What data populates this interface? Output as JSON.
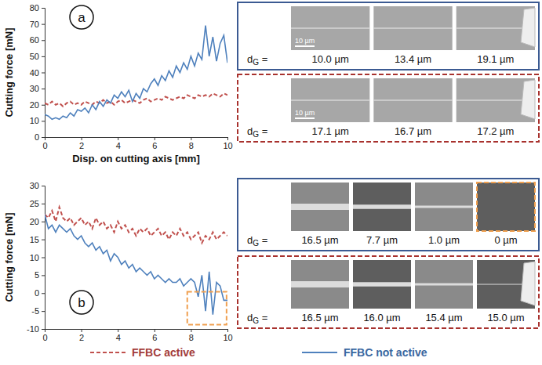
{
  "chart_data": [
    {
      "type": "line",
      "annotations": [
        "a"
      ],
      "x_label": "Disp. on cutting axis [mm]",
      "y_label": "Cutting force [mN]",
      "x": [
        0,
        0.2,
        0.4,
        0.6,
        0.8,
        1,
        1.2,
        1.4,
        1.6,
        1.8,
        2,
        2.2,
        2.4,
        2.6,
        2.8,
        3,
        3.2,
        3.4,
        3.6,
        3.8,
        4,
        4.2,
        4.4,
        4.6,
        4.8,
        5,
        5.2,
        5.4,
        5.6,
        5.8,
        6,
        6.2,
        6.4,
        6.6,
        6.8,
        7,
        7.2,
        7.4,
        7.6,
        7.8,
        8,
        8.2,
        8.4,
        8.6,
        8.8,
        9,
        9.2,
        9.4,
        9.6,
        9.8,
        10
      ],
      "xlim": [
        0,
        10
      ],
      "xticks": [
        0,
        2,
        4,
        6,
        8,
        10
      ],
      "ylim": [
        0,
        80
      ],
      "yticks": [
        0,
        10,
        20,
        30,
        40,
        50,
        60,
        70,
        80
      ],
      "series": [
        {
          "name": "FFBC active",
          "color": "#c0504d",
          "line_style": "dashed",
          "values": [
            21,
            20,
            22,
            20,
            21,
            19,
            21,
            22,
            20,
            21,
            20,
            22,
            21,
            20,
            22,
            21,
            23,
            21,
            22,
            20,
            22,
            23,
            21,
            22,
            23,
            22,
            21,
            23,
            24,
            22,
            23,
            24,
            23,
            25,
            24,
            23,
            24,
            25,
            24,
            26,
            25,
            24,
            26,
            25,
            26,
            25,
            27,
            26,
            25,
            27,
            26
          ]
        },
        {
          "name": "FFBC not active",
          "color": "#4f81bd",
          "line_style": "solid",
          "values": [
            14,
            13,
            11,
            12,
            11,
            13,
            12,
            15,
            13,
            17,
            16,
            18,
            15,
            20,
            17,
            22,
            19,
            23,
            21,
            26,
            24,
            28,
            25,
            29,
            22,
            27,
            24,
            30,
            28,
            33,
            36,
            32,
            38,
            35,
            41,
            37,
            44,
            40,
            46,
            42,
            50,
            44,
            52,
            48,
            69,
            50,
            62,
            47,
            58,
            63,
            46
          ]
        }
      ]
    },
    {
      "type": "line",
      "annotations": [
        "b"
      ],
      "y_label": "Cutting force [mN]",
      "x": [
        0,
        0.2,
        0.4,
        0.6,
        0.8,
        1,
        1.2,
        1.4,
        1.6,
        1.8,
        2,
        2.2,
        2.4,
        2.6,
        2.8,
        3,
        3.2,
        3.4,
        3.6,
        3.8,
        4,
        4.2,
        4.4,
        4.6,
        4.8,
        5,
        5.2,
        5.4,
        5.6,
        5.8,
        6,
        6.2,
        6.4,
        6.6,
        6.8,
        7,
        7.2,
        7.4,
        7.6,
        7.8,
        8,
        8.2,
        8.4,
        8.6,
        8.8,
        9,
        9.2,
        9.4,
        9.6,
        9.8,
        10
      ],
      "xlim": [
        0,
        10
      ],
      "xticks": [
        0,
        2,
        4,
        6,
        8,
        10
      ],
      "ylim": [
        -10,
        30
      ],
      "yticks": [
        -10,
        -5,
        0,
        5,
        10,
        15,
        20,
        25,
        30
      ],
      "legend": "bottom",
      "series": [
        {
          "name": "FFBC active",
          "color": "#c0504d",
          "line_style": "dashed",
          "values": [
            22,
            21,
            23,
            20,
            24,
            21,
            20,
            21,
            19,
            20,
            21,
            19,
            20,
            18,
            21,
            19,
            20,
            18,
            19,
            17,
            20,
            18,
            19,
            17,
            18,
            16,
            18,
            17,
            18,
            16,
            17,
            18,
            16,
            17,
            15,
            17,
            16,
            18,
            16,
            17,
            15,
            16,
            17,
            14,
            16,
            15,
            17,
            15,
            16,
            17,
            16
          ]
        },
        {
          "name": "FFBC not active",
          "color": "#4f81bd",
          "line_style": "solid",
          "values": [
            22,
            18,
            19,
            17,
            19,
            18,
            17,
            18,
            16,
            15,
            16,
            14,
            13,
            14,
            12,
            13,
            11,
            12,
            9,
            11,
            10,
            8,
            9,
            7,
            8,
            6,
            7,
            6,
            5,
            6,
            4,
            5,
            4,
            3,
            4,
            3,
            3,
            4,
            2,
            3,
            4,
            3,
            -1,
            5,
            -5,
            6,
            -6,
            3,
            2,
            -2,
            -2
          ]
        }
      ]
    }
  ],
  "micrographs": [
    {
      "rows": [
        {
          "series": "FFBC not active",
          "label": "dG =",
          "scale_bar": "10 µm",
          "dG": [
            {
              "value": 10.0,
              "label": "10.0 µm"
            },
            {
              "value": 13.4,
              "label": "13.4 µm"
            },
            {
              "value": 19.1,
              "label": "19.1 µm"
            }
          ]
        },
        {
          "series": "FFBC active",
          "label": "dG =",
          "scale_bar": "10 µm",
          "dG": [
            {
              "value": 17.1,
              "label": "17.1 µm"
            },
            {
              "value": 16.7,
              "label": "16.7 µm"
            },
            {
              "value": 17.2,
              "label": "17.2 µm"
            }
          ]
        }
      ]
    },
    {
      "rows": [
        {
          "series": "FFBC not active",
          "label": "dG =",
          "highlight_last": true,
          "dG": [
            {
              "value": 16.5,
              "label": "16.5 µm"
            },
            {
              "value": 7.7,
              "label": "7.7 µm"
            },
            {
              "value": 1.0,
              "label": "1.0 µm"
            },
            {
              "value": 0,
              "label": "0 µm"
            }
          ]
        },
        {
          "series": "FFBC active",
          "label": "dG =",
          "dG": [
            {
              "value": 16.5,
              "label": "16.5 µm"
            },
            {
              "value": 16.0,
              "label": "16.0 µm"
            },
            {
              "value": 15.4,
              "label": "15.4 µm"
            },
            {
              "value": 15.0,
              "label": "15.0 µm"
            }
          ]
        }
      ]
    }
  ]
}
